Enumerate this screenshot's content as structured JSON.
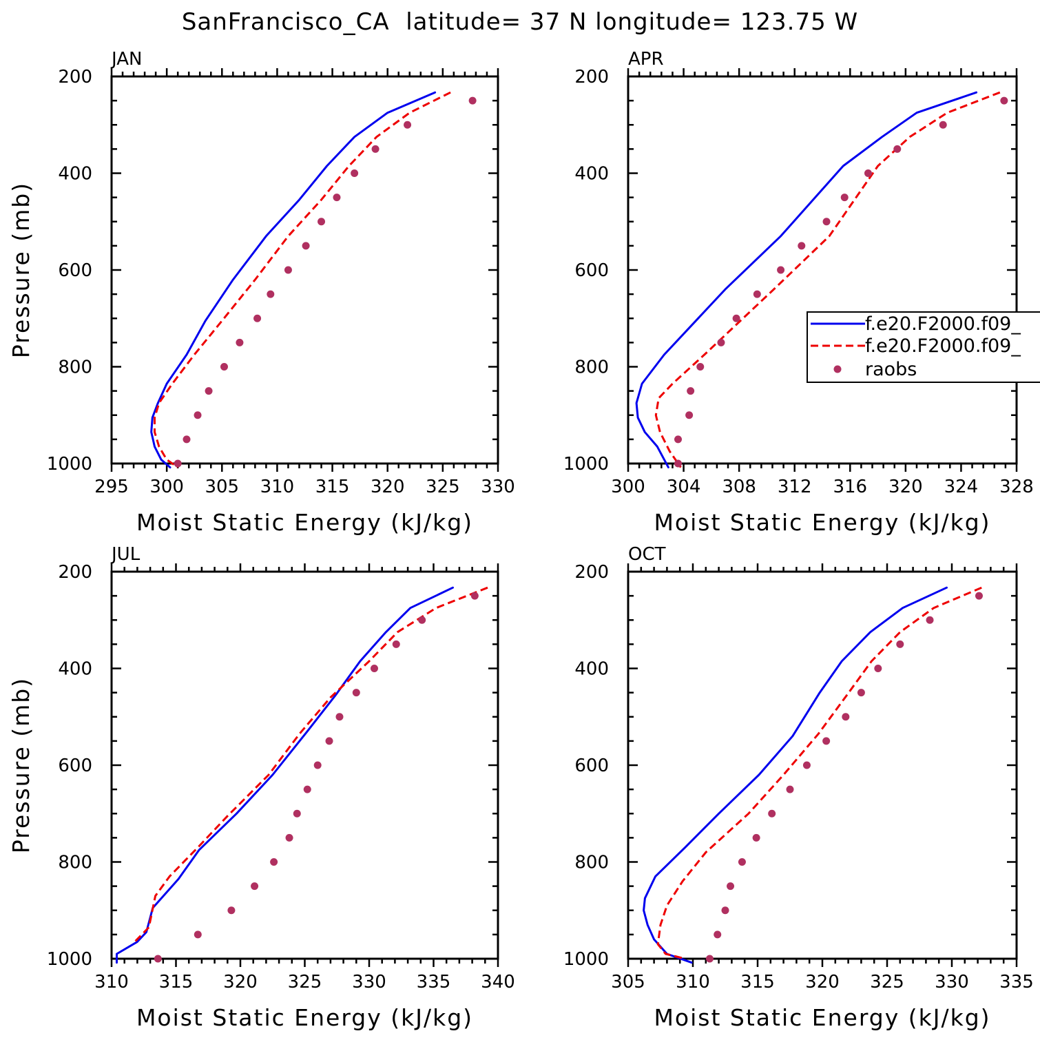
{
  "title": "SanFrancisco_CA  latitude= 37 N longitude= 123.75 W",
  "colors": {
    "model1": "#0000ee",
    "model2": "#ee0000",
    "raobs": "#b03060"
  },
  "legend": {
    "entries": [
      {
        "name": "f.e20.F2000.f09_",
        "style": "solid"
      },
      {
        "name": "f.e20.F2000.f09_",
        "style": "dashed"
      },
      {
        "name": "raobs",
        "style": "dots"
      }
    ],
    "location": "right side of APR panel"
  },
  "chart_data": [
    {
      "type": "line",
      "panel": "JAN",
      "title": "JAN",
      "xlabel": "Moist Static Energy (kJ/kg)",
      "ylabel": "Pressure (mb)",
      "xlim": [
        295,
        330
      ],
      "ylim": [
        200,
        1000
      ],
      "xticks": [
        "295",
        "300",
        "305",
        "310",
        "315",
        "320",
        "325",
        "330"
      ],
      "yticks": [
        "200",
        "400",
        "600",
        "800",
        "1000"
      ],
      "series": [
        {
          "name": "f.e20.F2000.f09_ (solid)",
          "style": "solid",
          "x": [
            324.3,
            320,
            317,
            314.5,
            312,
            309,
            306,
            303.5,
            301.8,
            300,
            299.2,
            298.7,
            298.6,
            298.9,
            299.5,
            300.3
          ],
          "y": [
            233,
            275,
            325,
            385,
            455,
            530,
            620,
            705,
            775,
            835,
            875,
            905,
            935,
            965,
            992,
            1008
          ]
        },
        {
          "name": "f.e20.F2000.f09_ (dashed)",
          "style": "dashed",
          "x": [
            325.7,
            322,
            319,
            316.5,
            314,
            311,
            308,
            305,
            302.5,
            300.5,
            299.3,
            298.9,
            298.9,
            299.3,
            300.0,
            301.0
          ],
          "y": [
            233,
            275,
            325,
            385,
            455,
            530,
            620,
            705,
            775,
            835,
            875,
            905,
            935,
            965,
            992,
            1008
          ]
        },
        {
          "name": "raobs",
          "style": "dots",
          "x": [
            327.7,
            321.8,
            318.9,
            317.0,
            315.4,
            314.0,
            312.6,
            311.0,
            309.4,
            308.2,
            306.6,
            305.2,
            303.8,
            302.8,
            301.8,
            301.0
          ],
          "y": [
            250,
            300,
            350,
            400,
            450,
            500,
            550,
            600,
            650,
            700,
            750,
            800,
            850,
            900,
            950,
            1000
          ]
        }
      ]
    },
    {
      "type": "line",
      "panel": "APR",
      "title": "APR",
      "xlabel": "Moist Static Energy (kJ/kg)",
      "ylabel": "",
      "xlim": [
        300,
        328
      ],
      "ylim": [
        200,
        1000
      ],
      "xticks": [
        "300",
        "304",
        "308",
        "312",
        "316",
        "320",
        "324",
        "328"
      ],
      "yticks": [
        "200",
        "400",
        "600",
        "800",
        "1000"
      ],
      "series": [
        {
          "name": "f.e20.F2000.f09_ (solid)",
          "style": "solid",
          "x": [
            325.1,
            320.8,
            318.3,
            315.5,
            311,
            307,
            302.6,
            301.0,
            300.6,
            300.7,
            301.2,
            302.1,
            302.9
          ],
          "y": [
            233,
            275,
            325,
            385,
            530,
            640,
            775,
            835,
            875,
            905,
            935,
            965,
            1008
          ]
        },
        {
          "name": "f.e20.F2000.f09_ (dashed)",
          "style": "dashed",
          "x": [
            326.8,
            323,
            320.3,
            318,
            314.5,
            310.5,
            305.5,
            303.2,
            302.2,
            302.0,
            302.3,
            303.0,
            303.8
          ],
          "y": [
            233,
            275,
            325,
            385,
            530,
            640,
            775,
            835,
            865,
            900,
            935,
            975,
            1008
          ]
        },
        {
          "name": "raobs",
          "style": "dots",
          "x": [
            327.1,
            322.7,
            319.4,
            317.3,
            315.6,
            314.3,
            312.5,
            311.0,
            309.3,
            307.8,
            306.7,
            305.2,
            304.5,
            304.4,
            303.6,
            303.6
          ],
          "y": [
            250,
            300,
            350,
            400,
            450,
            500,
            550,
            600,
            650,
            700,
            750,
            800,
            850,
            900,
            950,
            1000
          ]
        }
      ]
    },
    {
      "type": "line",
      "panel": "JUL",
      "title": "JUL",
      "xlabel": "Moist Static Energy (kJ/kg)",
      "ylabel": "Pressure (mb)",
      "xlim": [
        310,
        340
      ],
      "ylim": [
        200,
        1000
      ],
      "xticks": [
        "310",
        "315",
        "320",
        "325",
        "330",
        "335",
        "340"
      ],
      "yticks": [
        "200",
        "400",
        "600",
        "800",
        "1000"
      ],
      "series": [
        {
          "name": "f.e20.F2000.f09_ (solid)",
          "style": "solid",
          "x": [
            336.5,
            333.2,
            331.3,
            329.3,
            327.4,
            325.2,
            322.5,
            319.7,
            316.8,
            315.2,
            313.2,
            312.7,
            312.0,
            310.4,
            310.4
          ],
          "y": [
            233,
            275,
            325,
            385,
            455,
            530,
            620,
            700,
            775,
            835,
            895,
            945,
            965,
            990,
            1008
          ]
        },
        {
          "name": "f.e20.F2000.f09_ (dashed)",
          "style": "dashed",
          "x": [
            339.2,
            335.2,
            332.2,
            330.0,
            327.0,
            324.6,
            322.2,
            319.0,
            316.7,
            314.5,
            313.4,
            312.9,
            311.8
          ],
          "y": [
            233,
            275,
            325,
            385,
            460,
            535,
            620,
            705,
            770,
            830,
            870,
            935,
            965
          ]
        },
        {
          "name": "raobs",
          "style": "dots",
          "x": [
            338.2,
            334.1,
            332.1,
            330.4,
            329.0,
            327.7,
            326.9,
            326.0,
            325.2,
            324.4,
            323.8,
            322.6,
            321.1,
            319.3,
            316.7,
            313.6
          ],
          "y": [
            250,
            300,
            350,
            400,
            450,
            500,
            550,
            600,
            650,
            700,
            750,
            800,
            850,
            900,
            950,
            1000
          ]
        }
      ]
    },
    {
      "type": "line",
      "panel": "OCT",
      "title": "OCT",
      "xlabel": "Moist Static Energy (kJ/kg)",
      "ylabel": "",
      "xlim": [
        305,
        335
      ],
      "ylim": [
        200,
        1000
      ],
      "xticks": [
        "305",
        "310",
        "315",
        "320",
        "325",
        "330",
        "335"
      ],
      "yticks": [
        "200",
        "400",
        "600",
        "800",
        "1000"
      ],
      "series": [
        {
          "name": "f.e20.F2000.f09_ (solid)",
          "style": "solid",
          "x": [
            329.6,
            326.2,
            323.7,
            321.5,
            319.8,
            317.7,
            315.1,
            312.0,
            309.4,
            307.1,
            306.3,
            306.2,
            306.5,
            307.0,
            308.0,
            309.9
          ],
          "y": [
            233,
            275,
            325,
            385,
            450,
            540,
            620,
            700,
            770,
            830,
            875,
            900,
            930,
            960,
            990,
            1008
          ]
        },
        {
          "name": "f.e20.F2000.f09_ (dashed)",
          "style": "dashed",
          "x": [
            332.3,
            328.6,
            326.0,
            323.8,
            321.9,
            319.7,
            317.0,
            314.3,
            311.0,
            309.2,
            308.0,
            307.5,
            307.3,
            307.9,
            309.4
          ],
          "y": [
            233,
            275,
            325,
            385,
            455,
            535,
            620,
            700,
            780,
            840,
            890,
            930,
            970,
            990,
            1000
          ]
        },
        {
          "name": "raobs",
          "style": "dots",
          "x": [
            332.1,
            328.3,
            326.0,
            324.3,
            323.0,
            321.8,
            320.3,
            318.8,
            317.5,
            316.1,
            314.9,
            313.8,
            312.9,
            312.5,
            311.9,
            311.3
          ],
          "y": [
            250,
            300,
            350,
            400,
            450,
            500,
            550,
            600,
            650,
            700,
            750,
            800,
            850,
            900,
            950,
            1000
          ]
        }
      ]
    }
  ]
}
